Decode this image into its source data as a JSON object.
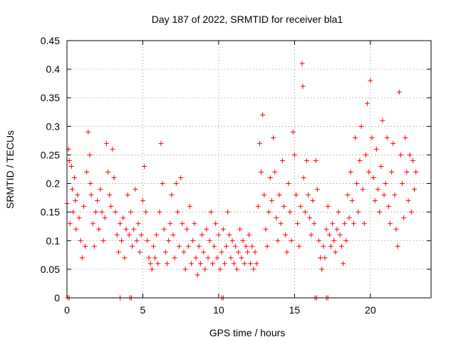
{
  "chart_data": {
    "type": "scatter",
    "title": "Day 187 of 2022, SRMTID for receiver bla1",
    "xlabel": "GPS time / hours",
    "ylabel": "SRMTID / TECUs",
    "xlim": [
      0,
      24
    ],
    "ylim": [
      0,
      0.45
    ],
    "xticks": [
      0,
      5,
      10,
      15,
      20
    ],
    "xtick_labels": [
      "0",
      "5",
      "10",
      "15",
      "20"
    ],
    "yticks": [
      0,
      0.05,
      0.1,
      0.15,
      0.2,
      0.25,
      0.3,
      0.35,
      0.4,
      0.45
    ],
    "ytick_labels": [
      "0",
      "0.05",
      "0.1",
      "0.15",
      "0.2",
      "0.25",
      "0.3",
      "0.35",
      "0.4",
      "0.45"
    ],
    "grid": true,
    "marker": "plus",
    "color": "#ff0000",
    "series": [
      {
        "name": "SRMTID",
        "points": [
          [
            0.0,
            0.165
          ],
          [
            0.1,
            0.26
          ],
          [
            0.15,
            0.24
          ],
          [
            0.2,
            0.13
          ],
          [
            0.3,
            0.23
          ],
          [
            0.35,
            0.19
          ],
          [
            0.4,
            0.15
          ],
          [
            0.5,
            0.21
          ],
          [
            0.55,
            0.17
          ],
          [
            0.6,
            0.12
          ],
          [
            0.7,
            0.18
          ],
          [
            0.8,
            0.14
          ],
          [
            0.9,
            0.1
          ],
          [
            1.0,
            0.07
          ],
          [
            1.1,
            0.16
          ],
          [
            1.2,
            0.09
          ],
          [
            1.3,
            0.22
          ],
          [
            1.4,
            0.29
          ],
          [
            1.5,
            0.25
          ],
          [
            1.55,
            0.2
          ],
          [
            1.6,
            0.18
          ],
          [
            1.7,
            0.13
          ],
          [
            1.8,
            0.09
          ],
          [
            1.9,
            0.15
          ],
          [
            2.0,
            0.17
          ],
          [
            2.1,
            0.12
          ],
          [
            2.2,
            0.19
          ],
          [
            2.3,
            0.15
          ],
          [
            2.4,
            0.1
          ],
          [
            2.5,
            0.14
          ],
          [
            2.6,
            0.27
          ],
          [
            2.7,
            0.22
          ],
          [
            2.8,
            0.18
          ],
          [
            2.9,
            0.16
          ],
          [
            3.0,
            0.26
          ],
          [
            3.1,
            0.21
          ],
          [
            3.2,
            0.15
          ],
          [
            3.3,
            0.11
          ],
          [
            3.4,
            0.08
          ],
          [
            3.5,
            0.13
          ],
          [
            3.6,
            0.1
          ],
          [
            3.7,
            0.14
          ],
          [
            3.8,
            0.07
          ],
          [
            3.9,
            0.12
          ],
          [
            4.0,
            0.18
          ],
          [
            4.1,
            0.11
          ],
          [
            4.2,
            0.15
          ],
          [
            4.3,
            0.09
          ],
          [
            4.4,
            0.12
          ],
          [
            4.5,
            0.19
          ],
          [
            4.6,
            0.1
          ],
          [
            4.7,
            0.13
          ],
          [
            4.8,
            0.08
          ],
          [
            4.9,
            0.11
          ],
          [
            5.0,
            0.17
          ],
          [
            5.1,
            0.23
          ],
          [
            5.2,
            0.15
          ],
          [
            5.3,
            0.1
          ],
          [
            5.4,
            0.07
          ],
          [
            5.5,
            0.06
          ],
          [
            5.6,
            0.05
          ],
          [
            5.7,
            0.09
          ],
          [
            5.8,
            0.07
          ],
          [
            5.9,
            0.11
          ],
          [
            6.0,
            0.06
          ],
          [
            6.1,
            0.15
          ],
          [
            6.2,
            0.27
          ],
          [
            6.3,
            0.2
          ],
          [
            6.4,
            0.12
          ],
          [
            6.5,
            0.08
          ],
          [
            6.6,
            0.06
          ],
          [
            6.7,
            0.1
          ],
          [
            6.8,
            0.13
          ],
          [
            6.9,
            0.18
          ],
          [
            7.0,
            0.11
          ],
          [
            7.1,
            0.07
          ],
          [
            7.2,
            0.2
          ],
          [
            7.3,
            0.15
          ],
          [
            7.4,
            0.09
          ],
          [
            7.5,
            0.21
          ],
          [
            7.6,
            0.13
          ],
          [
            7.7,
            0.08
          ],
          [
            7.8,
            0.05
          ],
          [
            7.9,
            0.12
          ],
          [
            8.0,
            0.09
          ],
          [
            8.1,
            0.16
          ],
          [
            8.2,
            0.06
          ],
          [
            8.3,
            0.1
          ],
          [
            8.4,
            0.13
          ],
          [
            8.5,
            0.07
          ],
          [
            8.6,
            0.04
          ],
          [
            8.7,
            0.09
          ],
          [
            8.8,
            0.06
          ],
          [
            8.9,
            0.11
          ],
          [
            9.0,
            0.08
          ],
          [
            9.1,
            0.05
          ],
          [
            9.2,
            0.12
          ],
          [
            9.3,
            0.07
          ],
          [
            9.4,
            0.1
          ],
          [
            9.5,
            0.15
          ],
          [
            9.6,
            0.06
          ],
          [
            9.7,
            0.09
          ],
          [
            9.8,
            0.13
          ],
          [
            9.9,
            0.07
          ],
          [
            10.0,
            0.11
          ],
          [
            10.1,
            0.05
          ],
          [
            10.2,
            0.08
          ],
          [
            10.3,
            0.12
          ],
          [
            10.4,
            0.06
          ],
          [
            10.5,
            0.09
          ],
          [
            10.6,
            0.15
          ],
          [
            10.7,
            0.11
          ],
          [
            10.8,
            0.07
          ],
          [
            10.9,
            0.1
          ],
          [
            11.0,
            0.06
          ],
          [
            11.1,
            0.09
          ],
          [
            11.2,
            0.05
          ],
          [
            11.3,
            0.08
          ],
          [
            11.4,
            0.12
          ],
          [
            11.5,
            0.07
          ],
          [
            11.6,
            0.1
          ],
          [
            11.7,
            0.06
          ],
          [
            11.8,
            0.09
          ],
          [
            11.9,
            0.08
          ],
          [
            12.0,
            0.11
          ],
          [
            12.1,
            0.06
          ],
          [
            12.2,
            0.09
          ],
          [
            12.3,
            0.05
          ],
          [
            12.4,
            0.08
          ],
          [
            12.5,
            0.06
          ],
          [
            12.6,
            0.16
          ],
          [
            12.7,
            0.27
          ],
          [
            12.8,
            0.22
          ],
          [
            12.9,
            0.32
          ],
          [
            13.0,
            0.18
          ],
          [
            13.1,
            0.12
          ],
          [
            13.2,
            0.09
          ],
          [
            13.3,
            0.15
          ],
          [
            13.4,
            0.21
          ],
          [
            13.5,
            0.17
          ],
          [
            13.6,
            0.28
          ],
          [
            13.7,
            0.22
          ],
          [
            13.8,
            0.14
          ],
          [
            13.9,
            0.1
          ],
          [
            14.0,
            0.18
          ],
          [
            14.1,
            0.13
          ],
          [
            14.2,
            0.24
          ],
          [
            14.3,
            0.16
          ],
          [
            14.4,
            0.11
          ],
          [
            14.5,
            0.08
          ],
          [
            14.6,
            0.2
          ],
          [
            14.7,
            0.15
          ],
          [
            14.8,
            0.1
          ],
          [
            14.9,
            0.29
          ],
          [
            15.0,
            0.25
          ],
          [
            15.1,
            0.18
          ],
          [
            15.2,
            0.13
          ],
          [
            15.3,
            0.09
          ],
          [
            15.4,
            0.16
          ],
          [
            15.5,
            0.41
          ],
          [
            15.55,
            0.37
          ],
          [
            15.6,
            0.21
          ],
          [
            15.7,
            0.15
          ],
          [
            15.8,
            0.24
          ],
          [
            15.9,
            0.18
          ],
          [
            16.0,
            0.14
          ],
          [
            16.1,
            0.11
          ],
          [
            16.2,
            0.17
          ],
          [
            16.3,
            0.13
          ],
          [
            16.4,
            0.24
          ],
          [
            16.5,
            0.19
          ],
          [
            16.6,
            0.1
          ],
          [
            16.7,
            0.07
          ],
          [
            16.8,
            0.05
          ],
          [
            16.9,
            0.09
          ],
          [
            17.0,
            0.07
          ],
          [
            17.1,
            0.12
          ],
          [
            17.2,
            0.16
          ],
          [
            17.3,
            0.11
          ],
          [
            17.4,
            0.09
          ],
          [
            17.5,
            0.13
          ],
          [
            17.6,
            0.1
          ],
          [
            17.7,
            0.08
          ],
          [
            17.8,
            0.12
          ],
          [
            17.9,
            0.15
          ],
          [
            18.0,
            0.11
          ],
          [
            18.1,
            0.09
          ],
          [
            18.2,
            0.06
          ],
          [
            18.3,
            0.13
          ],
          [
            18.4,
            0.1
          ],
          [
            18.5,
            0.18
          ],
          [
            18.6,
            0.14
          ],
          [
            18.7,
            0.22
          ],
          [
            18.8,
            0.17
          ],
          [
            18.9,
            0.13
          ],
          [
            19.0,
            0.28
          ],
          [
            19.1,
            0.2
          ],
          [
            19.2,
            0.15
          ],
          [
            19.3,
            0.24
          ],
          [
            19.4,
            0.3
          ],
          [
            19.5,
            0.19
          ],
          [
            19.6,
            0.13
          ],
          [
            19.7,
            0.25
          ],
          [
            19.8,
            0.34
          ],
          [
            19.9,
            0.22
          ],
          [
            20.0,
            0.38
          ],
          [
            20.1,
            0.28
          ],
          [
            20.2,
            0.21
          ],
          [
            20.3,
            0.17
          ],
          [
            20.4,
            0.26
          ],
          [
            20.5,
            0.19
          ],
          [
            20.6,
            0.15
          ],
          [
            20.7,
            0.23
          ],
          [
            20.8,
            0.31
          ],
          [
            20.9,
            0.18
          ],
          [
            21.0,
            0.2
          ],
          [
            21.1,
            0.28
          ],
          [
            21.2,
            0.16
          ],
          [
            21.3,
            0.13
          ],
          [
            21.4,
            0.22
          ],
          [
            21.5,
            0.27
          ],
          [
            21.6,
            0.18
          ],
          [
            21.7,
            0.12
          ],
          [
            21.8,
            0.09
          ],
          [
            21.9,
            0.36
          ],
          [
            22.0,
            0.25
          ],
          [
            22.1,
            0.2
          ],
          [
            22.2,
            0.14
          ],
          [
            22.3,
            0.28
          ],
          [
            22.4,
            0.22
          ],
          [
            22.5,
            0.17
          ],
          [
            22.6,
            0.25
          ],
          [
            22.7,
            0.15
          ],
          [
            22.8,
            0.24
          ],
          [
            22.9,
            0.19
          ],
          [
            23.0,
            0.22
          ],
          [
            0.05,
            0.0
          ],
          [
            0.15,
            0.0
          ],
          [
            4.15,
            0.0
          ],
          [
            4.25,
            0.0
          ],
          [
            10.2,
            0.0
          ],
          [
            10.3,
            0.0
          ],
          [
            16.35,
            0.0
          ],
          [
            16.45,
            0.0
          ],
          [
            17.1,
            0.0
          ],
          [
            17.2,
            0.0
          ],
          [
            3.5,
            0.0
          ]
        ]
      }
    ]
  }
}
